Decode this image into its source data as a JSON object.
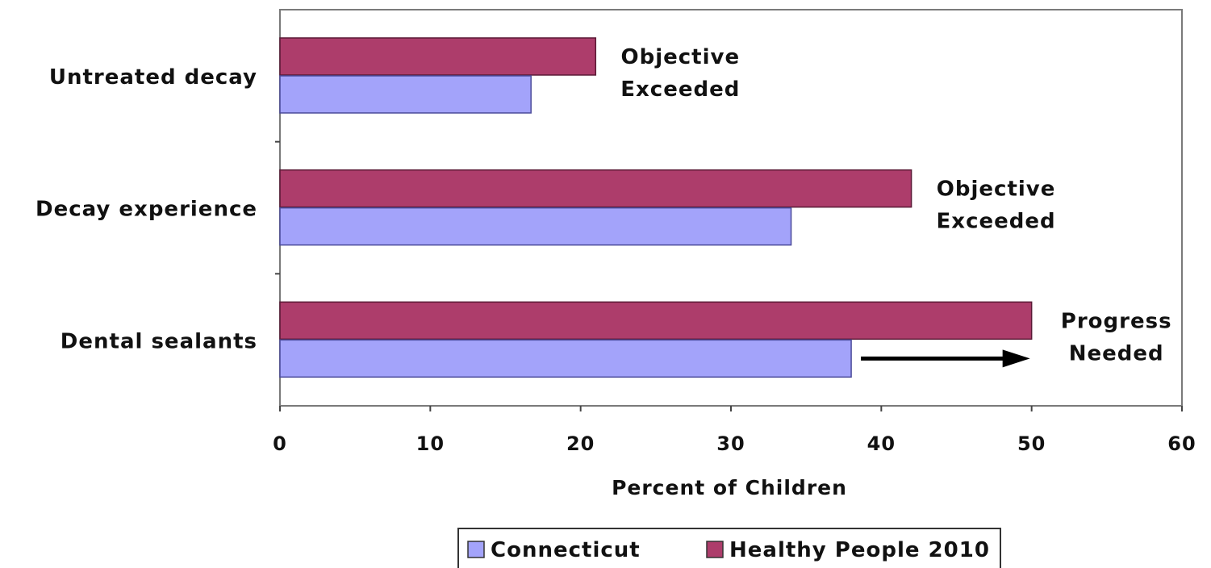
{
  "chart_data": {
    "type": "bar",
    "orientation": "horizontal",
    "categories": [
      "Untreated decay",
      "Decay experience",
      "Dental sealants"
    ],
    "series": [
      {
        "name": "Connecticut",
        "values": [
          16.7,
          34,
          38
        ],
        "color": "#a3a3fa"
      },
      {
        "name": "Healthy People 2010",
        "values": [
          21,
          42,
          50
        ],
        "color": "#ad3d6b"
      }
    ],
    "xlabel": "Percent of Children",
    "ylabel": "",
    "xlim": [
      0,
      60
    ],
    "xticks": [
      "0",
      "10",
      "20",
      "30",
      "40",
      "50",
      "60"
    ],
    "grid": false,
    "legend_position": "bottom",
    "annotations": [
      {
        "category": "Untreated decay",
        "line1": "Objective",
        "line2": "Exceeded"
      },
      {
        "category": "Decay experience",
        "line1": "Objective",
        "line2": "Exceeded"
      },
      {
        "category": "Dental sealants",
        "line1": "Progress",
        "line2": "Needed",
        "arrow": true
      }
    ]
  }
}
